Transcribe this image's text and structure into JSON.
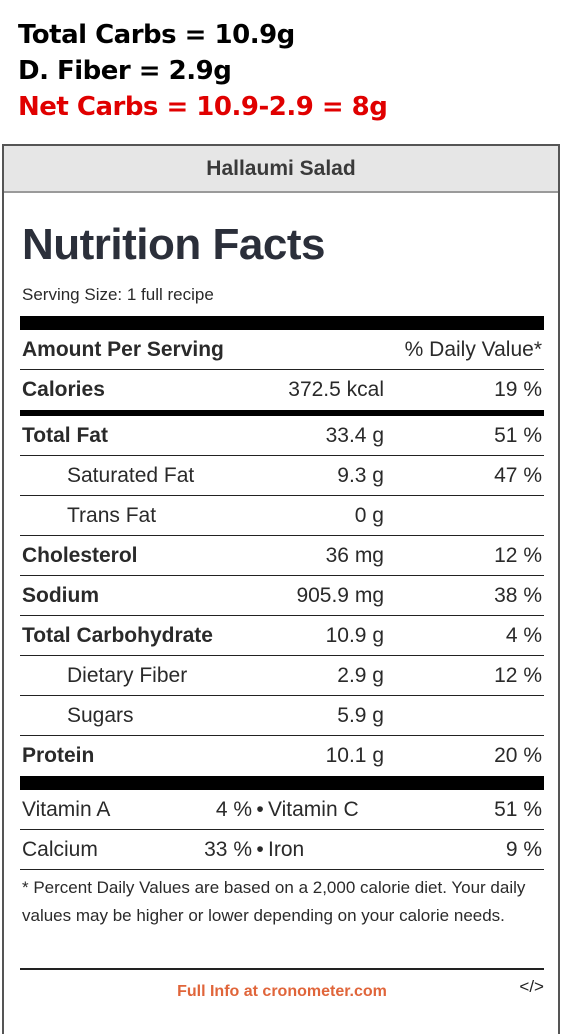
{
  "annotation": {
    "line1": "Total Carbs = 10.9g",
    "line2": "D. Fiber = 2.9g",
    "line3": "Net Carbs = 10.9-2.9 = 8g",
    "line3_color": "#e00000"
  },
  "header": {
    "title": "Hallaumi Salad"
  },
  "label": {
    "title": "Nutrition Facts",
    "serving_size": "Serving Size: 1 full recipe",
    "amount_header": "Amount Per Serving",
    "dv_header": "% Daily Value*"
  },
  "nutrients": [
    {
      "name": "Calories",
      "amount": "372.5 kcal",
      "dv": "19 %"
    },
    {
      "name": "Total Fat",
      "amount": "33.4 g",
      "dv": "51 %"
    },
    {
      "name": "Saturated Fat",
      "amount": "9.3 g",
      "dv": "47 %"
    },
    {
      "name": "Trans Fat",
      "amount": "0 g",
      "dv": ""
    },
    {
      "name": "Cholesterol",
      "amount": "36 mg",
      "dv": "12 %"
    },
    {
      "name": "Sodium",
      "amount": "905.9 mg",
      "dv": "38 %"
    },
    {
      "name": "Total Carbohydrate",
      "amount": "10.9 g",
      "dv": "4 %"
    },
    {
      "name": "Dietary Fiber",
      "amount": "2.9 g",
      "dv": "12 %"
    },
    {
      "name": "Sugars",
      "amount": "5.9 g",
      "dv": ""
    },
    {
      "name": "Protein",
      "amount": "10.1 g",
      "dv": "20 %"
    }
  ],
  "vitamins": [
    {
      "left_name": "Vitamin A",
      "left_dv": "4 %",
      "separator": "•",
      "right_name": "Vitamin C",
      "right_dv": "51 %"
    },
    {
      "left_name": "Calcium",
      "left_dv": "33 %",
      "separator": "•",
      "right_name": "Iron",
      "right_dv": "9 %"
    }
  ],
  "footnote": "* Percent Daily Values are based on a 2,000 calorie diet. Your daily values may be higher or lower depending on your calorie needs.",
  "footer": {
    "link": "Full Info at cronometer.com",
    "link_color": "#e0653a",
    "embed": "</>"
  }
}
